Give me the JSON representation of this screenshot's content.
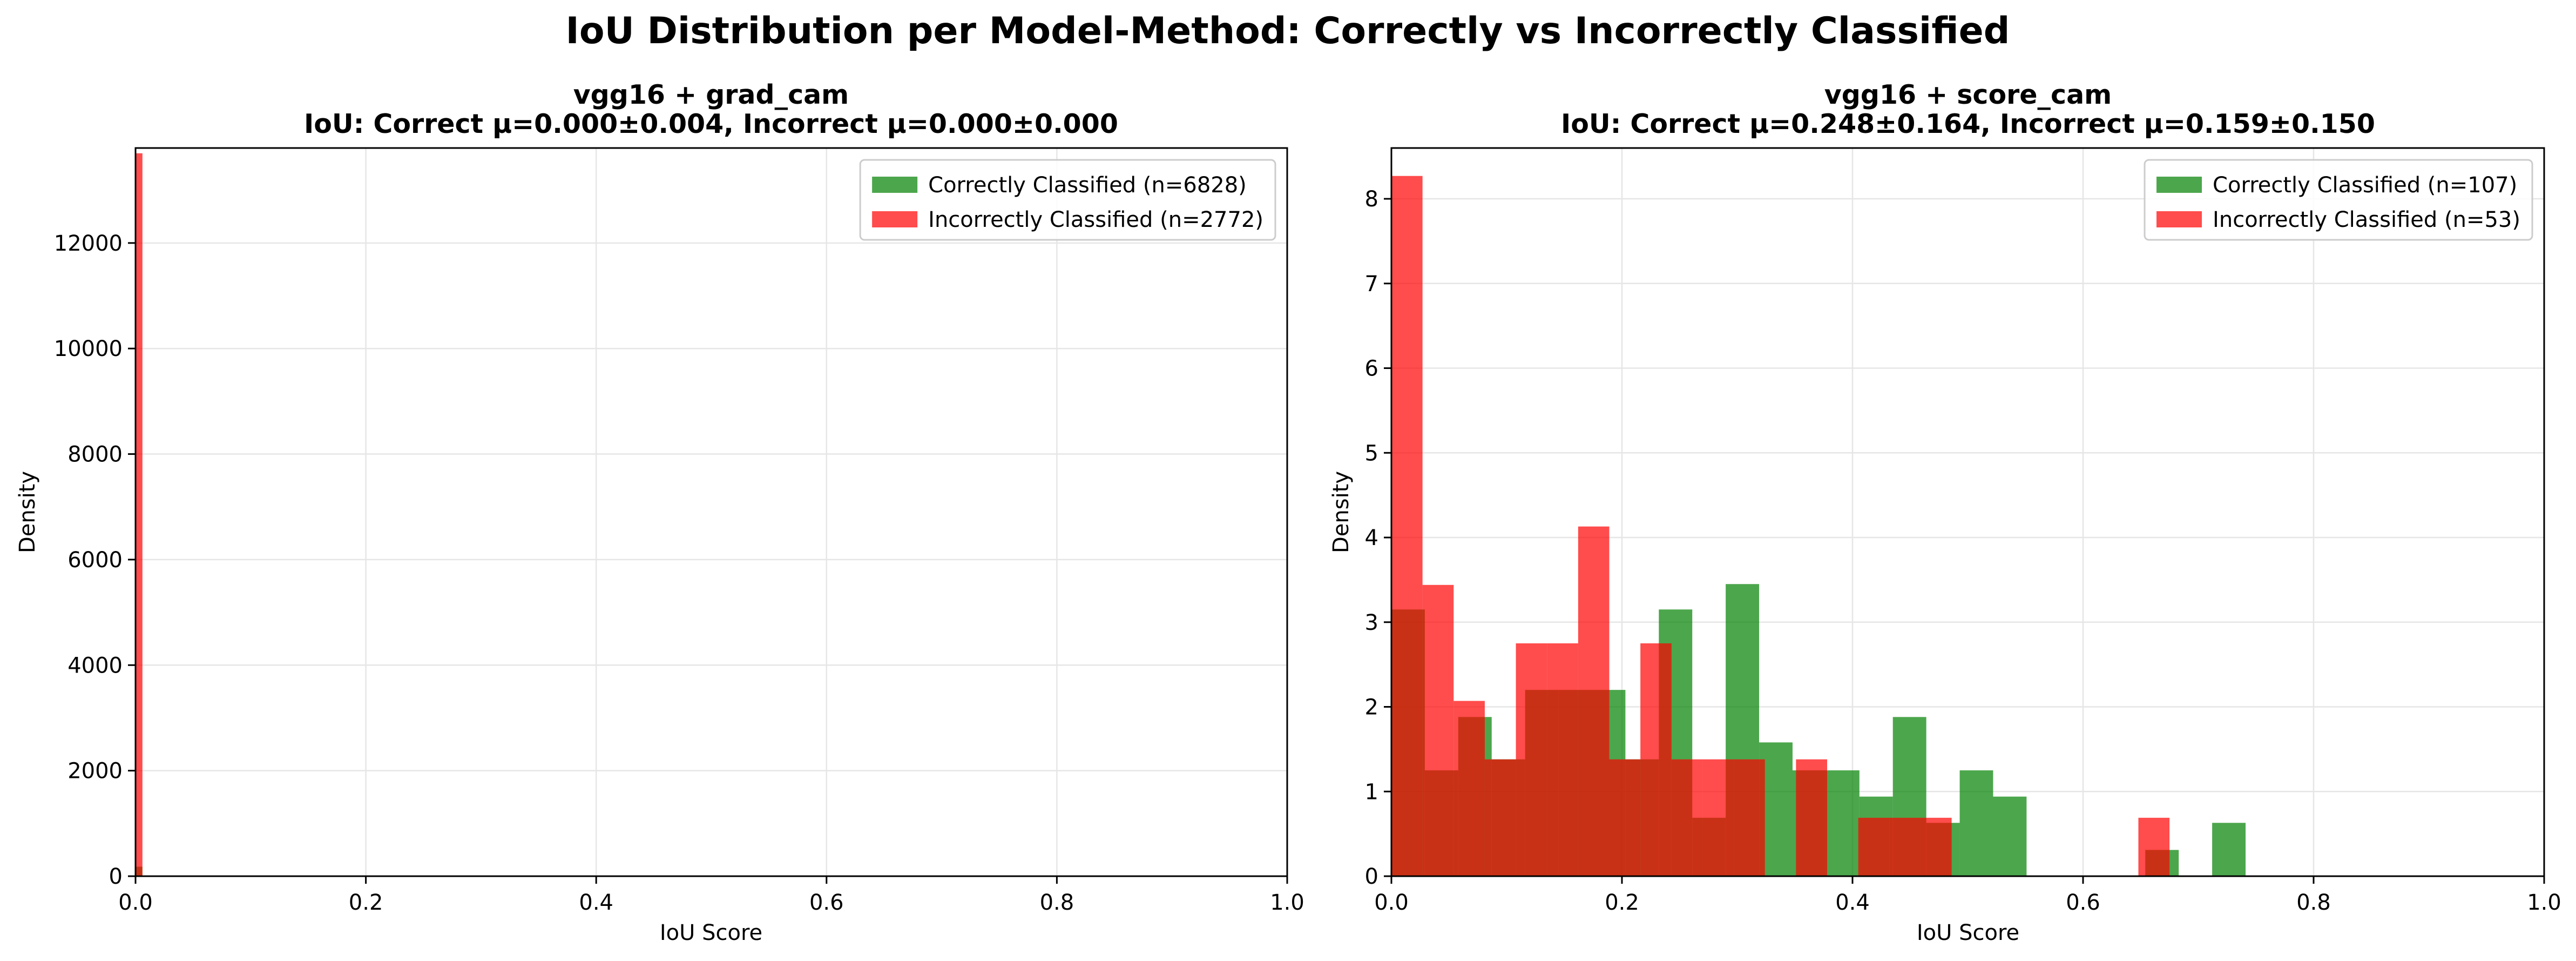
{
  "figure_title": "IoU Distribution per Model-Method: Correctly vs Incorrectly Classified",
  "colors": {
    "correct": "#008000",
    "incorrect": "#ff0000",
    "overlap": "#cc2b1a",
    "grid": "#e6e6e6"
  },
  "chart_data": [
    {
      "type": "bar",
      "title_line1": "vgg16 + grad_cam",
      "title_line2": "IoU: Correct μ=0.000±0.004, Incorrect μ=0.000±0.000",
      "xlabel": "IoU Score",
      "ylabel": "Density",
      "xlim": [
        0,
        1
      ],
      "ylim": [
        0,
        13800
      ],
      "xticks": [
        0,
        0.2,
        0.4,
        0.6,
        0.8,
        1.0
      ],
      "xtick_labels": [
        "0.0",
        "0.2",
        "0.4",
        "0.6",
        "0.8",
        "1.0"
      ],
      "yticks": [
        0,
        2000,
        4000,
        6000,
        8000,
        10000,
        12000
      ],
      "ytick_labels": [
        "0",
        "2000",
        "4000",
        "6000",
        "8000",
        "10000",
        "12000"
      ],
      "grid": true,
      "legend_position": "top-right",
      "series": [
        {
          "name": "Correctly Classified (n=6828)",
          "color": "#008000",
          "bins": [
            [
              0.0,
              0.006,
              180
            ]
          ]
        },
        {
          "name": "Incorrectly Classified (n=2772)",
          "color": "#ff0000",
          "bins": [
            [
              0.0,
              0.006,
              13700
            ]
          ]
        }
      ]
    },
    {
      "type": "bar",
      "title_line1": "vgg16 + score_cam",
      "title_line2": "IoU: Correct μ=0.248±0.164, Incorrect μ=0.159±0.150",
      "xlabel": "IoU Score",
      "ylabel": "Density",
      "xlim": [
        0,
        1
      ],
      "ylim": [
        0,
        8.6
      ],
      "xticks": [
        0,
        0.2,
        0.4,
        0.6,
        0.8,
        1.0
      ],
      "xtick_labels": [
        "0.0",
        "0.2",
        "0.4",
        "0.6",
        "0.8",
        "1.0"
      ],
      "yticks": [
        0,
        1,
        2,
        3,
        4,
        5,
        6,
        7,
        8
      ],
      "ytick_labels": [
        "0",
        "1",
        "2",
        "3",
        "4",
        "5",
        "6",
        "7",
        "8"
      ],
      "grid": true,
      "legend_position": "top-right",
      "series": [
        {
          "name": "Correctly Classified (n=107)",
          "color": "#008000",
          "bins": [
            [
              0.0,
              0.029,
              3.15
            ],
            [
              0.029,
              0.058,
              1.25
            ],
            [
              0.058,
              0.087,
              1.88
            ],
            [
              0.087,
              0.116,
              1.38
            ],
            [
              0.116,
              0.145,
              2.2
            ],
            [
              0.145,
              0.174,
              2.2
            ],
            [
              0.174,
              0.203,
              2.2
            ],
            [
              0.203,
              0.232,
              1.38
            ],
            [
              0.232,
              0.261,
              3.15
            ],
            [
              0.261,
              0.29,
              0.69
            ],
            [
              0.29,
              0.319,
              3.45
            ],
            [
              0.319,
              0.348,
              1.58
            ],
            [
              0.348,
              0.377,
              1.25
            ],
            [
              0.377,
              0.406,
              1.25
            ],
            [
              0.406,
              0.435,
              0.94
            ],
            [
              0.435,
              0.464,
              1.88
            ],
            [
              0.464,
              0.493,
              0.63
            ],
            [
              0.493,
              0.522,
              1.25
            ],
            [
              0.522,
              0.551,
              0.94
            ],
            [
              0.654,
              0.683,
              0.31
            ],
            [
              0.712,
              0.741,
              0.63
            ]
          ]
        },
        {
          "name": "Incorrectly Classified (n=53)",
          "color": "#ff0000",
          "bins": [
            [
              0.0,
              0.027,
              8.27
            ],
            [
              0.027,
              0.054,
              3.44
            ],
            [
              0.054,
              0.081,
              2.07
            ],
            [
              0.081,
              0.108,
              1.38
            ],
            [
              0.108,
              0.135,
              2.75
            ],
            [
              0.135,
              0.162,
              2.75
            ],
            [
              0.162,
              0.189,
              4.13
            ],
            [
              0.189,
              0.216,
              1.38
            ],
            [
              0.216,
              0.243,
              2.75
            ],
            [
              0.243,
              0.27,
              1.38
            ],
            [
              0.27,
              0.297,
              1.38
            ],
            [
              0.297,
              0.324,
              1.38
            ],
            [
              0.351,
              0.378,
              1.38
            ],
            [
              0.405,
              0.432,
              0.69
            ],
            [
              0.432,
              0.459,
              0.69
            ],
            [
              0.459,
              0.486,
              0.69
            ],
            [
              0.648,
              0.675,
              0.69
            ]
          ]
        }
      ]
    }
  ]
}
